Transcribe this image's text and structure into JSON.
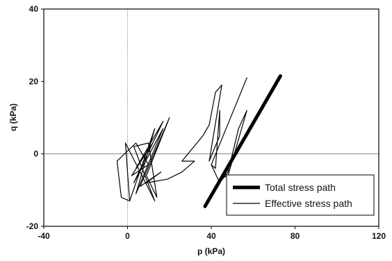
{
  "chart_data": {
    "type": "line",
    "xlabel": "p (kPa)",
    "ylabel": "q (kPa)",
    "xlim": [
      -40,
      120
    ],
    "ylim": [
      -20,
      40
    ],
    "x_ticks": [
      -40,
      0,
      40,
      80,
      120
    ],
    "y_ticks": [
      -20,
      0,
      20,
      40
    ],
    "x_tick_labels": [
      "-40",
      "0",
      "40",
      "80",
      "120"
    ],
    "y_tick_labels": [
      "-20",
      "0",
      "20",
      "40"
    ],
    "zero_lines": true,
    "grid": false,
    "legend_position": "bottom-right",
    "series": [
      {
        "name": "Total stress path",
        "stroke_width": 5,
        "points": [
          [
            37,
            -14.5
          ],
          [
            73,
            21.5
          ]
        ]
      },
      {
        "name": "Effective stress path",
        "stroke_width": 1.2,
        "points": [
          [
            1,
            -13
          ],
          [
            13,
            7
          ],
          [
            4,
            -11
          ],
          [
            17,
            7
          ],
          [
            3,
            -8
          ],
          [
            17,
            9
          ],
          [
            4,
            -4
          ],
          [
            12,
            3
          ],
          [
            2,
            -6
          ],
          [
            10,
            -3
          ],
          [
            4,
            3
          ],
          [
            -5,
            -2
          ],
          [
            -3,
            -12
          ],
          [
            1,
            -13
          ],
          [
            -1,
            3
          ],
          [
            13,
            -13
          ],
          [
            3,
            2
          ],
          [
            10,
            3
          ],
          [
            14,
            -12
          ],
          [
            9,
            -6
          ],
          [
            20,
            10
          ],
          [
            6,
            -9
          ],
          [
            16,
            -5
          ],
          [
            9,
            -8
          ],
          [
            19,
            -7
          ],
          [
            26,
            -5
          ],
          [
            32,
            -2
          ],
          [
            26,
            -2
          ],
          [
            36,
            5
          ],
          [
            39,
            8
          ],
          [
            42,
            17
          ],
          [
            45,
            19
          ],
          [
            39,
            -2
          ],
          [
            44,
            5
          ],
          [
            44,
            12
          ],
          [
            42,
            -4
          ],
          [
            40,
            -3
          ],
          [
            57,
            21
          ],
          [
            40,
            -3
          ],
          [
            44,
            -8
          ],
          [
            48,
            -5
          ],
          [
            53,
            7
          ],
          [
            57,
            12
          ],
          [
            48,
            -6
          ],
          [
            44,
            -7
          ],
          [
            37,
            -14
          ]
        ]
      }
    ],
    "legend": {
      "entries": [
        "Total stress path",
        "Effective stress path"
      ]
    }
  }
}
